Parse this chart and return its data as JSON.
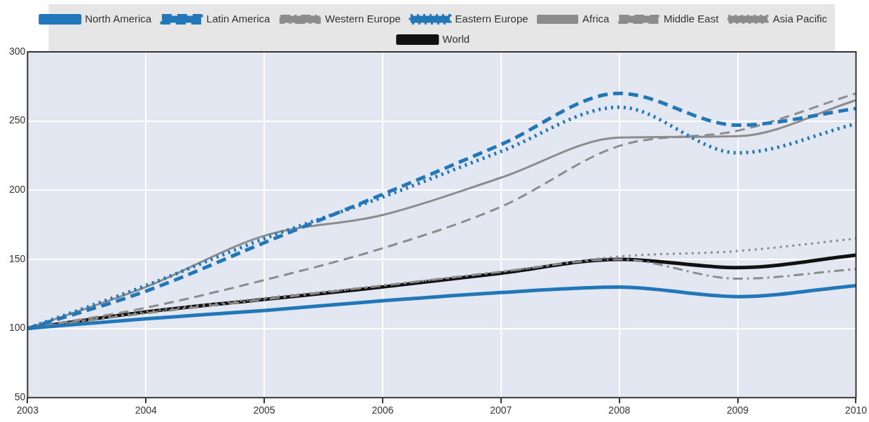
{
  "chart_data": {
    "type": "line",
    "x": [
      2003,
      2004,
      2005,
      2006,
      2007,
      2008,
      2009,
      2010
    ],
    "xlim": [
      2003,
      2010
    ],
    "xticks": [
      2003,
      2004,
      2005,
      2006,
      2007,
      2008,
      2009,
      2010
    ],
    "ylim": [
      50,
      300
    ],
    "yticks": [
      50,
      100,
      150,
      200,
      250,
      300
    ],
    "grid": true,
    "legend": "top",
    "marker": "none",
    "series": [
      {
        "name": "North America",
        "color": "#2277b8",
        "line_style": "solid",
        "values": [
          100,
          107,
          113,
          120,
          126,
          130,
          123,
          131
        ]
      },
      {
        "name": "Latin America",
        "color": "#2277b8",
        "line_style": "dashed",
        "values": [
          100,
          127,
          162,
          197,
          233,
          270,
          247,
          259
        ]
      },
      {
        "name": "Western Europe",
        "color": "#8c8c8c",
        "line_style": "dashdot",
        "values": [
          100,
          111,
          121,
          131,
          141,
          150,
          136,
          143
        ]
      },
      {
        "name": "Eastern Europe",
        "color": "#2277b8",
        "line_style": "dotted",
        "values": [
          100,
          131,
          165,
          195,
          228,
          260,
          227,
          248
        ]
      },
      {
        "name": "Africa",
        "color": "#8c8c8c",
        "line_style": "solid",
        "values": [
          100,
          130,
          167,
          182,
          209,
          238,
          239,
          265
        ]
      },
      {
        "name": "Middle East",
        "color": "#8c8c8c",
        "line_style": "dashed",
        "values": [
          100,
          115,
          135,
          158,
          188,
          232,
          243,
          270
        ]
      },
      {
        "name": "Asia Pacific",
        "color": "#8c8c8c",
        "line_style": "dotted",
        "values": [
          100,
          112,
          122,
          131,
          141,
          152,
          156,
          165
        ]
      },
      {
        "name": "World",
        "color": "#111111",
        "line_style": "solid",
        "values": [
          100,
          112,
          121,
          130,
          140,
          150,
          144,
          153
        ]
      }
    ]
  }
}
